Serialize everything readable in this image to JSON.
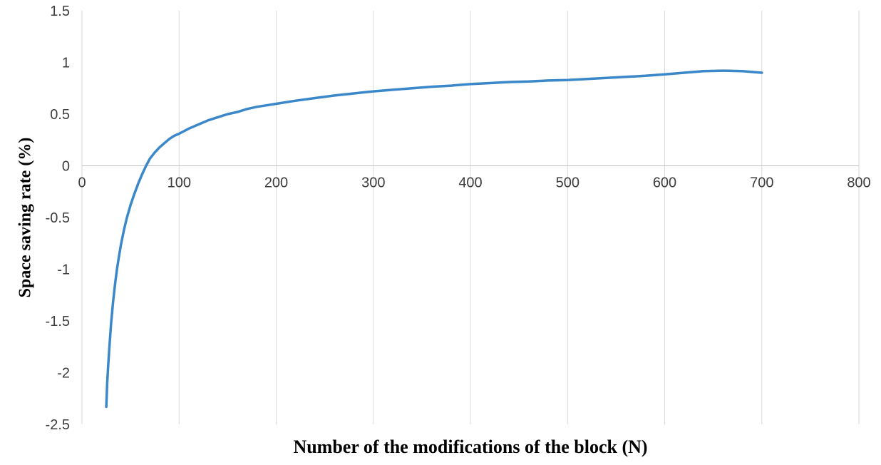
{
  "chart_data": {
    "type": "line",
    "title": "",
    "xlabel": "Number of the modifications of the block (N)",
    "ylabel": "Space saving rate (%)",
    "xlim": [
      0,
      800
    ],
    "ylim": [
      -2.5,
      1.5
    ],
    "x_ticks": [
      0,
      100,
      200,
      300,
      400,
      500,
      600,
      700,
      800
    ],
    "x_tick_labels": [
      "0",
      "100",
      "200",
      "300",
      "400",
      "500",
      "600",
      "700",
      "800"
    ],
    "y_ticks": [
      1.5,
      1,
      0.5,
      0,
      -0.5,
      -1,
      -1.5,
      -2,
      -2.5
    ],
    "y_tick_labels": [
      "1.5",
      "1",
      "0.5",
      "0",
      "-0.5",
      "-1",
      "-1.5",
      "-2",
      "-2.5"
    ],
    "grid": "vertical-only",
    "legend": "none",
    "colors": {
      "line": "#3a87c9",
      "gridline": "#d9d9d9",
      "axis_line": "#bfbfbf",
      "tick_text": "#3d3d3d"
    },
    "series": [
      {
        "name": "Space saving rate",
        "points": [
          [
            25,
            -2.33
          ],
          [
            26,
            -2.1
          ],
          [
            27,
            -1.93
          ],
          [
            28,
            -1.78
          ],
          [
            30,
            -1.52
          ],
          [
            32,
            -1.32
          ],
          [
            34,
            -1.15
          ],
          [
            36,
            -1.0
          ],
          [
            38,
            -0.88
          ],
          [
            40,
            -0.77
          ],
          [
            43,
            -0.63
          ],
          [
            46,
            -0.51
          ],
          [
            50,
            -0.38
          ],
          [
            54,
            -0.27
          ],
          [
            58,
            -0.17
          ],
          [
            62,
            -0.08
          ],
          [
            66,
            0.0
          ],
          [
            70,
            0.07
          ],
          [
            75,
            0.13
          ],
          [
            80,
            0.18
          ],
          [
            85,
            0.22
          ],
          [
            90,
            0.26
          ],
          [
            95,
            0.29
          ],
          [
            100,
            0.31
          ],
          [
            110,
            0.36
          ],
          [
            120,
            0.4
          ],
          [
            130,
            0.44
          ],
          [
            140,
            0.47
          ],
          [
            150,
            0.5
          ],
          [
            160,
            0.52
          ],
          [
            170,
            0.55
          ],
          [
            180,
            0.57
          ],
          [
            190,
            0.585
          ],
          [
            200,
            0.6
          ],
          [
            220,
            0.63
          ],
          [
            240,
            0.655
          ],
          [
            260,
            0.68
          ],
          [
            280,
            0.7
          ],
          [
            300,
            0.72
          ],
          [
            320,
            0.735
          ],
          [
            340,
            0.75
          ],
          [
            360,
            0.765
          ],
          [
            380,
            0.775
          ],
          [
            400,
            0.79
          ],
          [
            420,
            0.8
          ],
          [
            440,
            0.81
          ],
          [
            460,
            0.815
          ],
          [
            480,
            0.825
          ],
          [
            500,
            0.83
          ],
          [
            520,
            0.84
          ],
          [
            540,
            0.85
          ],
          [
            560,
            0.86
          ],
          [
            580,
            0.87
          ],
          [
            600,
            0.885
          ],
          [
            620,
            0.9
          ],
          [
            640,
            0.915
          ],
          [
            660,
            0.92
          ],
          [
            680,
            0.915
          ],
          [
            700,
            0.9
          ]
        ]
      }
    ]
  }
}
